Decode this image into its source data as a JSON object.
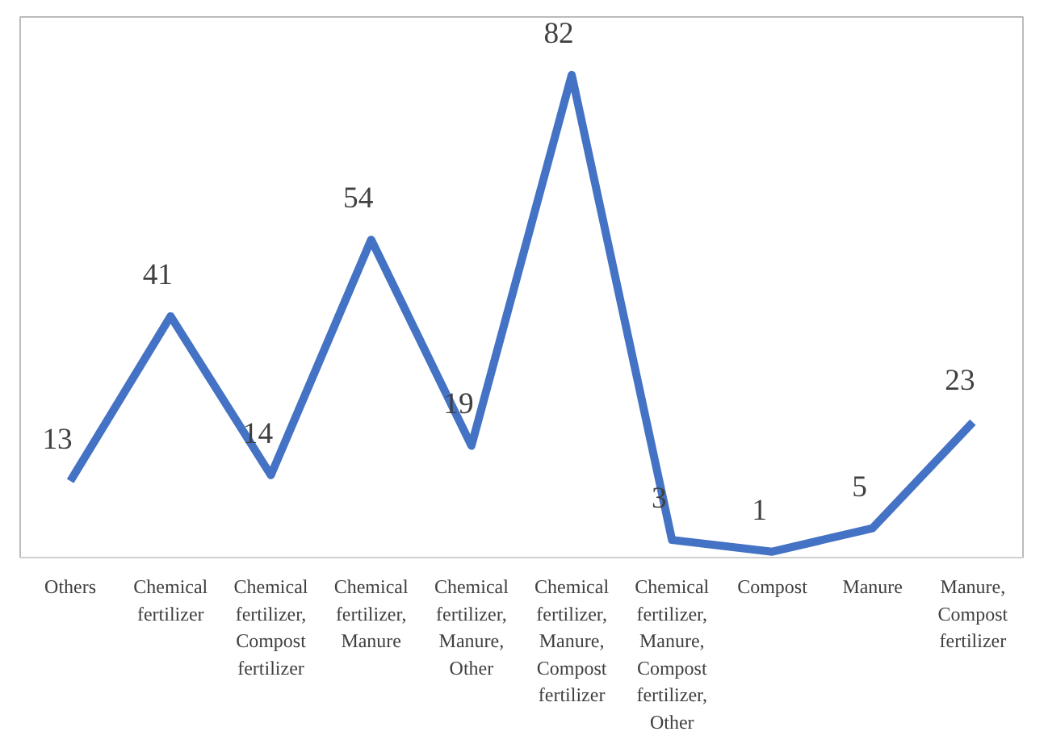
{
  "chart_data": {
    "type": "line",
    "categories": [
      "Others",
      "Chemical fertilizer",
      "Chemical fertilizer, Compost fertilizer",
      "Chemical fertilizer, Manure",
      "Chemical fertilizer, Manure, Other",
      "Chemical fertilizer, Manure, Compost fertilizer",
      "Chemical fertilizer, Manure, Compost fertilizer, Other",
      "Compost",
      "Manure",
      "Manure, Compost fertilizer"
    ],
    "series": [
      {
        "color": "#4472c4",
        "values": [
          13,
          41,
          14,
          54,
          19,
          82,
          3,
          1,
          5,
          23
        ]
      }
    ],
    "data_labels": true,
    "grid": false,
    "marker": "none",
    "line_style": "solid"
  }
}
